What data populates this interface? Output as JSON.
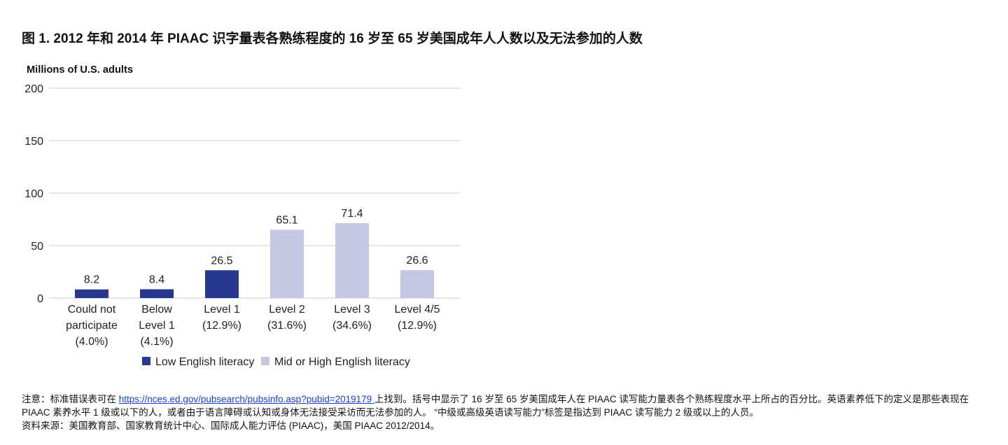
{
  "title": "图 1. 2012 年和 2014 年 PIAAC 识字量表各熟练程度的 16 岁至 65 岁美国成年人人数以及无法参加的人数",
  "colors": {
    "low": "#283891",
    "mid_high": "#c5c8e3",
    "grid": "#cccccc"
  },
  "chart_data": {
    "type": "bar",
    "ylabel": "Millions of U.S. adults",
    "ylim": [
      0,
      200
    ],
    "yticks": [
      "0",
      "50",
      "100",
      "150",
      "200"
    ],
    "grid": true,
    "legend_position": "bottom",
    "categories": [
      {
        "lines": [
          "Could not",
          "participate",
          "(4.0%)"
        ],
        "value": 8.2,
        "label": "8.2",
        "group": "low"
      },
      {
        "lines": [
          "Below",
          "Level 1",
          "(4.1%)"
        ],
        "value": 8.4,
        "label": "8.4",
        "group": "low"
      },
      {
        "lines": [
          "Level 1",
          "(12.9%)"
        ],
        "value": 26.5,
        "label": "26.5",
        "group": "low"
      },
      {
        "lines": [
          "Level 2",
          "(31.6%)"
        ],
        "value": 65.1,
        "label": "65.1",
        "group": "mid_high"
      },
      {
        "lines": [
          "Level 3",
          "(34.6%)"
        ],
        "value": 71.4,
        "label": "71.4",
        "group": "mid_high"
      },
      {
        "lines": [
          "Level 4/5",
          "(12.9%)"
        ],
        "value": 26.6,
        "label": "26.6",
        "group": "mid_high"
      }
    ],
    "legend": [
      {
        "label": "Low English literacy",
        "group": "low"
      },
      {
        "label": "Mid or High English literacy",
        "group": "mid_high"
      }
    ]
  },
  "notes": {
    "note_prefix": "注意：标准错误表可在 ",
    "link": "https://nces.ed.gov/pubsearch/pubsinfo.asp?pubid=2019179 ",
    "note_suffix": "上找到。括号中显示了 16 岁至 65 岁美国成年人在 PIAAC 读写能力量表各个熟练程度水平上所占的百分比。英语素养低下的定义是那些表现在 PIAAC 素养水平 1 级或以下的人，或者由于语言障碍或认知或身体无法接受采访而无法参加的人。 “中级或高级英语读写能力”标签是指达到 PIAAC 读写能力 2 级或以上的人员。",
    "source": "资料来源：美国教育部、国家教育统计中心、国际成人能力评估 (PIAAC)，美国 PIAAC 2012/2014。"
  }
}
